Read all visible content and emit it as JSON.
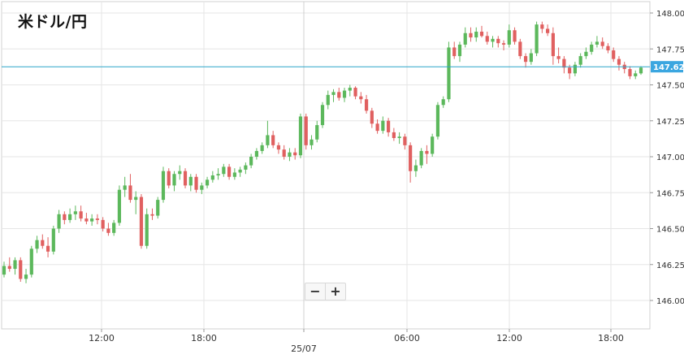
{
  "chart_data": {
    "type": "candlestick",
    "title": "米ドル/円",
    "ylim": [
      145.8,
      148.1
    ],
    "y_ticks": [
      "148.000",
      "147.750",
      "147.500",
      "147.250",
      "147.000",
      "146.750",
      "146.500",
      "146.250",
      "146.000"
    ],
    "x_ticks": [
      "12:00",
      "18:00",
      "25/07",
      "06:00",
      "12:00",
      "18:00"
    ],
    "current_price": 147.626,
    "current_price_label": "147.626",
    "grid": true,
    "colors": {
      "up": "#5cb85c",
      "down": "#e06060",
      "price_line": "#2aa6c8",
      "price_tag": "#3ba6e0",
      "grid": "#e6e6e6"
    },
    "candles": [
      [
        146.18,
        146.27,
        146.16,
        146.24
      ],
      [
        146.24,
        146.3,
        146.2,
        146.22
      ],
      [
        146.22,
        146.3,
        146.18,
        146.28
      ],
      [
        146.28,
        146.3,
        146.13,
        146.15
      ],
      [
        146.15,
        146.22,
        146.12,
        146.18
      ],
      [
        146.18,
        146.38,
        146.16,
        146.36
      ],
      [
        146.36,
        146.45,
        146.33,
        146.42
      ],
      [
        146.42,
        146.46,
        146.36,
        146.38
      ],
      [
        146.38,
        146.44,
        146.3,
        146.34
      ],
      [
        146.34,
        146.52,
        146.32,
        146.5
      ],
      [
        146.5,
        146.63,
        146.47,
        146.6
      ],
      [
        146.6,
        146.62,
        146.53,
        146.56
      ],
      [
        146.56,
        146.64,
        146.54,
        146.6
      ],
      [
        146.6,
        146.66,
        146.56,
        146.62
      ],
      [
        146.62,
        146.66,
        146.55,
        146.57
      ],
      [
        146.57,
        146.61,
        146.53,
        146.55
      ],
      [
        146.55,
        146.6,
        146.52,
        146.57
      ],
      [
        146.57,
        146.6,
        146.53,
        146.56
      ],
      [
        146.56,
        146.58,
        146.48,
        146.5
      ],
      [
        146.5,
        146.54,
        146.45,
        146.47
      ],
      [
        146.47,
        146.56,
        146.45,
        146.54
      ],
      [
        146.54,
        146.8,
        146.52,
        146.77
      ],
      [
        146.77,
        146.86,
        146.72,
        146.8
      ],
      [
        146.8,
        146.88,
        146.68,
        146.7
      ],
      [
        146.7,
        146.76,
        146.6,
        146.72
      ],
      [
        146.72,
        146.74,
        146.36,
        146.38
      ],
      [
        146.38,
        146.64,
        146.36,
        146.6
      ],
      [
        146.6,
        146.64,
        146.56,
        146.59
      ],
      [
        146.59,
        146.72,
        146.57,
        146.7
      ],
      [
        146.7,
        146.93,
        146.68,
        146.9
      ],
      [
        146.9,
        146.92,
        146.78,
        146.8
      ],
      [
        146.8,
        146.9,
        146.76,
        146.88
      ],
      [
        146.88,
        146.94,
        146.84,
        146.9
      ],
      [
        146.9,
        146.92,
        146.78,
        146.8
      ],
      [
        146.8,
        146.88,
        146.76,
        146.86
      ],
      [
        146.86,
        146.88,
        146.75,
        146.77
      ],
      [
        146.77,
        146.82,
        146.74,
        146.8
      ],
      [
        146.8,
        146.86,
        146.78,
        146.84
      ],
      [
        146.84,
        146.9,
        146.82,
        146.87
      ],
      [
        146.87,
        146.92,
        146.84,
        146.88
      ],
      [
        146.88,
        146.95,
        146.86,
        146.93
      ],
      [
        146.93,
        146.95,
        146.84,
        146.86
      ],
      [
        146.86,
        146.92,
        146.84,
        146.89
      ],
      [
        146.89,
        146.93,
        146.86,
        146.91
      ],
      [
        146.91,
        146.96,
        146.88,
        146.94
      ],
      [
        146.94,
        147.02,
        146.92,
        147.0
      ],
      [
        147.0,
        147.06,
        146.98,
        147.04
      ],
      [
        147.04,
        147.1,
        147.02,
        147.08
      ],
      [
        147.08,
        147.25,
        147.06,
        147.15
      ],
      [
        147.15,
        147.18,
        147.06,
        147.08
      ],
      [
        147.08,
        147.1,
        147.02,
        147.05
      ],
      [
        147.05,
        147.08,
        146.98,
        147.0
      ],
      [
        147.0,
        147.06,
        146.97,
        147.03
      ],
      [
        147.03,
        147.06,
        146.98,
        147.01
      ],
      [
        147.01,
        147.3,
        146.99,
        147.28
      ],
      [
        147.28,
        147.3,
        147.05,
        147.08
      ],
      [
        147.08,
        147.15,
        147.05,
        147.12
      ],
      [
        147.12,
        147.25,
        147.1,
        147.22
      ],
      [
        147.22,
        147.38,
        147.2,
        147.36
      ],
      [
        147.36,
        147.46,
        147.33,
        147.43
      ],
      [
        147.43,
        147.47,
        147.38,
        147.45
      ],
      [
        147.45,
        147.48,
        147.39,
        147.41
      ],
      [
        147.41,
        147.48,
        147.38,
        147.46
      ],
      [
        147.46,
        147.5,
        147.42,
        147.48
      ],
      [
        147.48,
        147.49,
        147.4,
        147.42
      ],
      [
        147.42,
        147.45,
        147.37,
        147.4
      ],
      [
        147.4,
        147.43,
        147.3,
        147.32
      ],
      [
        147.32,
        147.34,
        147.2,
        147.23
      ],
      [
        147.23,
        147.26,
        147.16,
        147.18
      ],
      [
        147.18,
        147.28,
        147.16,
        147.25
      ],
      [
        147.25,
        147.27,
        147.14,
        147.17
      ],
      [
        147.17,
        147.2,
        147.11,
        147.13
      ],
      [
        147.13,
        147.17,
        147.09,
        147.14
      ],
      [
        147.14,
        147.16,
        147.05,
        147.08
      ],
      [
        147.08,
        147.1,
        146.82,
        146.9
      ],
      [
        146.9,
        146.98,
        146.86,
        146.94
      ],
      [
        146.94,
        147.06,
        146.92,
        147.04
      ],
      [
        147.04,
        147.08,
        146.95,
        147.02
      ],
      [
        147.02,
        147.16,
        147.0,
        147.14
      ],
      [
        147.14,
        147.38,
        147.12,
        147.36
      ],
      [
        147.36,
        147.42,
        147.34,
        147.4
      ],
      [
        147.4,
        147.8,
        147.38,
        147.76
      ],
      [
        147.76,
        147.8,
        147.68,
        147.7
      ],
      [
        147.7,
        147.8,
        147.66,
        147.78
      ],
      [
        147.78,
        147.9,
        147.76,
        147.86
      ],
      [
        147.86,
        147.9,
        147.8,
        147.83
      ],
      [
        147.83,
        147.9,
        147.8,
        147.87
      ],
      [
        147.87,
        147.91,
        147.83,
        147.84
      ],
      [
        147.84,
        147.87,
        147.78,
        147.8
      ],
      [
        147.8,
        147.84,
        147.76,
        147.82
      ],
      [
        147.82,
        147.84,
        147.76,
        147.79
      ],
      [
        147.79,
        147.81,
        147.74,
        147.78
      ],
      [
        147.78,
        147.92,
        147.76,
        147.88
      ],
      [
        147.88,
        147.9,
        147.78,
        147.8
      ],
      [
        147.8,
        147.82,
        147.68,
        147.7
      ],
      [
        147.7,
        147.72,
        147.62,
        147.66
      ],
      [
        147.66,
        147.75,
        147.64,
        147.72
      ],
      [
        147.72,
        147.94,
        147.7,
        147.92
      ],
      [
        147.92,
        147.94,
        147.86,
        147.89
      ],
      [
        147.89,
        147.92,
        147.84,
        147.86
      ],
      [
        147.86,
        147.9,
        147.64,
        147.7
      ],
      [
        147.7,
        147.76,
        147.65,
        147.68
      ],
      [
        147.68,
        147.7,
        147.58,
        147.62
      ],
      [
        147.62,
        147.64,
        147.54,
        147.58
      ],
      [
        147.58,
        147.66,
        147.56,
        147.64
      ],
      [
        147.64,
        147.72,
        147.62,
        147.7
      ],
      [
        147.7,
        147.76,
        147.68,
        147.73
      ],
      [
        147.73,
        147.8,
        147.71,
        147.78
      ],
      [
        147.78,
        147.84,
        147.76,
        147.8
      ],
      [
        147.8,
        147.83,
        147.75,
        147.77
      ],
      [
        147.77,
        147.79,
        147.72,
        147.74
      ],
      [
        147.74,
        147.76,
        147.66,
        147.68
      ],
      [
        147.68,
        147.7,
        147.6,
        147.64
      ],
      [
        147.64,
        147.66,
        147.58,
        147.61
      ],
      [
        147.61,
        147.63,
        147.54,
        147.56
      ],
      [
        147.56,
        147.6,
        147.54,
        147.58
      ],
      [
        147.58,
        147.63,
        147.57,
        147.62
      ]
    ]
  }
}
